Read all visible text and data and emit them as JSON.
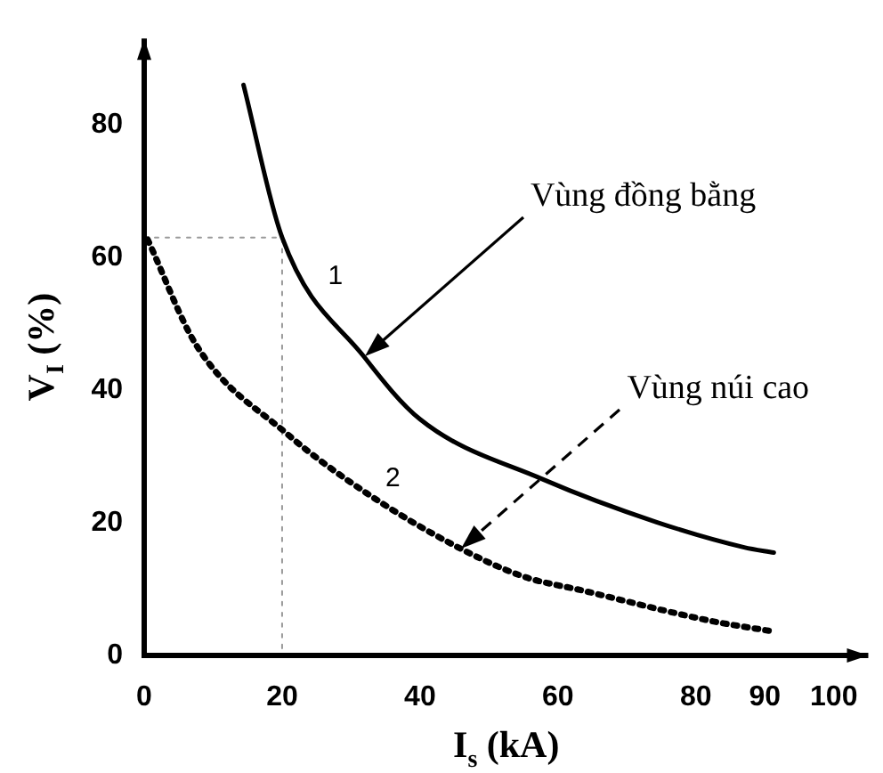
{
  "chart_data": {
    "type": "line",
    "xlabel": "I$_{s}$ (kA)",
    "ylabel": "V$_{I}$ (%)",
    "xlim": [
      0,
      105
    ],
    "xticks": [
      0,
      20,
      40,
      60,
      80,
      90,
      100
    ],
    "ylim": [
      0,
      93
    ],
    "yticks": [
      0,
      20,
      40,
      60,
      80
    ],
    "grid": false,
    "legend": false,
    "marker": "none",
    "series": [
      {
        "name": "1",
        "color": "#000000",
        "line_style": "solid",
        "x": [
          14.4,
          20,
          31.9,
          40,
          57.7,
          74.3,
          87,
          91.3
        ],
        "values": [
          86,
          63,
          45,
          35.6,
          26.6,
          20.1,
          16.3,
          15.5
        ]
      },
      {
        "name": "2",
        "color": "#000000",
        "line_style": "dotted",
        "x": [
          0.5,
          7.6,
          20.6,
          32.2,
          45.5,
          55,
          63.5,
          82.2,
          91.3
        ],
        "values": [
          62.7,
          46.7,
          33.5,
          24.5,
          16.3,
          11.9,
          9.8,
          5.2,
          3.6
        ]
      },
      {
        "color": "#999999",
        "line_style": "dotted",
        "x": [
          0,
          20,
          20
        ],
        "values": [
          63,
          63,
          0
        ]
      }
    ],
    "annotations": [
      {
        "text": "Vùng đồng bằng",
        "x": 32,
        "y": 45
      },
      {
        "text": "Vùng núi cao",
        "x": 46,
        "y": 16
      }
    ]
  }
}
